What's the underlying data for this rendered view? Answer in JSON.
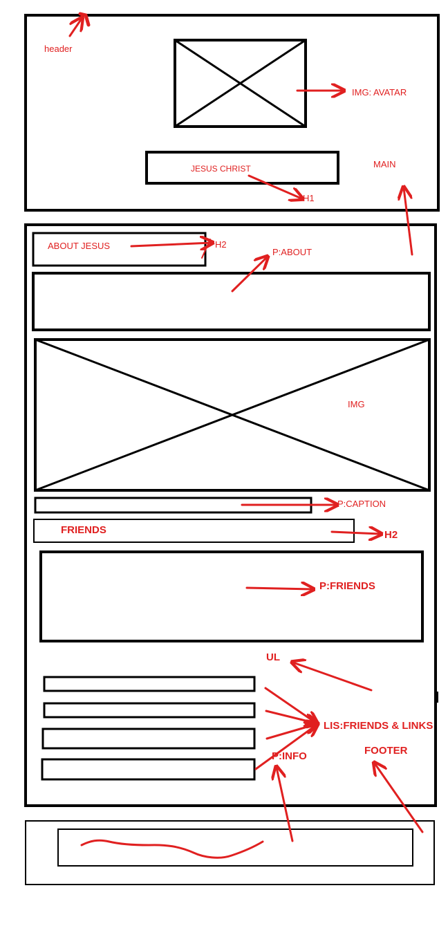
{
  "colors": {
    "ink": "#000000",
    "annotation": "#e02020",
    "background": "#ffffff"
  },
  "header": {
    "label": "header",
    "avatar_label": "IMG: AVATAR",
    "title_text": "JESUS CHRIST",
    "title_tag": "H1",
    "main_label": "MAIN"
  },
  "main": {
    "about_heading_text": "ABOUT JESUS",
    "about_heading_tag": "H2",
    "about_paragraph_label": "P:ABOUT",
    "image_label": "IMG",
    "caption_label": "P:CAPTION",
    "friends_heading_text": "FRIENDS",
    "friends_heading_tag": "H2",
    "friends_paragraph_label": "P:FRIENDS",
    "list_label": "UL",
    "list_items_label": "LIS:FRIENDS & LINKS",
    "list_item_count": 4
  },
  "footer": {
    "info_label": "P:INFO",
    "footer_label": "FOOTER",
    "scribble": "handwritten-scribble"
  }
}
